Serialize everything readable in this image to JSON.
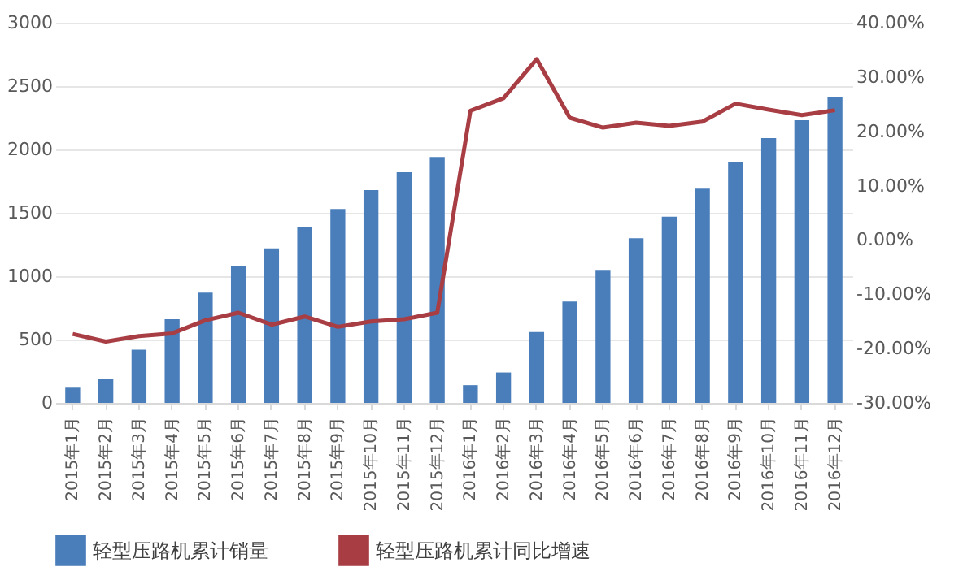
{
  "chart_data": {
    "type": "bar",
    "categories": [
      "2015年1月",
      "2015年2月",
      "2015年3月",
      "2015年4月",
      "2015年5月",
      "2015年6月",
      "2015年7月",
      "2015年8月",
      "2015年9月",
      "2015年10月",
      "2015年11月",
      "2015年12月",
      "2016年1月",
      "2016年2月",
      "2016年3月",
      "2016年4月",
      "2016年5月",
      "2016年6月",
      "2016年7月",
      "2016年8月",
      "2016年9月",
      "2016年10月",
      "2016年11月",
      "2016年12月"
    ],
    "series": [
      {
        "name": "轻型压路机累计销量",
        "color": "#4a7ebb",
        "values": [
          120,
          190,
          420,
          660,
          870,
          1080,
          1220,
          1390,
          1530,
          1680,
          1820,
          1940,
          140,
          240,
          560,
          800,
          1050,
          1300,
          1470,
          1690,
          1900,
          2090,
          2230,
          2410
        ]
      },
      {
        "name": "轻型压路机累计同比增速",
        "type": "line",
        "axis": "y2",
        "color": "#a83d44",
        "values": [
          -17.3,
          -18.7,
          -17.7,
          -17.2,
          -14.8,
          -13.4,
          -15.6,
          -14.1,
          -16.0,
          -15.0,
          -14.6,
          -13.4,
          23.8,
          26.1,
          33.3,
          22.5,
          20.7,
          21.6,
          21.0,
          21.8,
          25.1,
          24.0,
          23.0,
          23.9
        ]
      }
    ],
    "ylim": [
      0,
      3000
    ],
    "yticks": [
      0,
      500,
      1000,
      1500,
      2000,
      2500,
      3000
    ],
    "y2lim": [
      -30,
      40
    ],
    "y2ticks": [
      {
        "value": -30,
        "label": "-30.00%"
      },
      {
        "value": -20,
        "label": "-20.00%"
      },
      {
        "value": -10,
        "label": "-10.00%"
      },
      {
        "value": 0,
        "label": "0.00%"
      },
      {
        "value": 10,
        "label": "10.00%"
      },
      {
        "value": 20,
        "label": "20.00%"
      },
      {
        "value": 30,
        "label": "30.00%"
      },
      {
        "value": 40,
        "label": "40.00%"
      }
    ],
    "grid": "y",
    "legend": "bottom",
    "marker": "none",
    "line_style": "solid"
  }
}
